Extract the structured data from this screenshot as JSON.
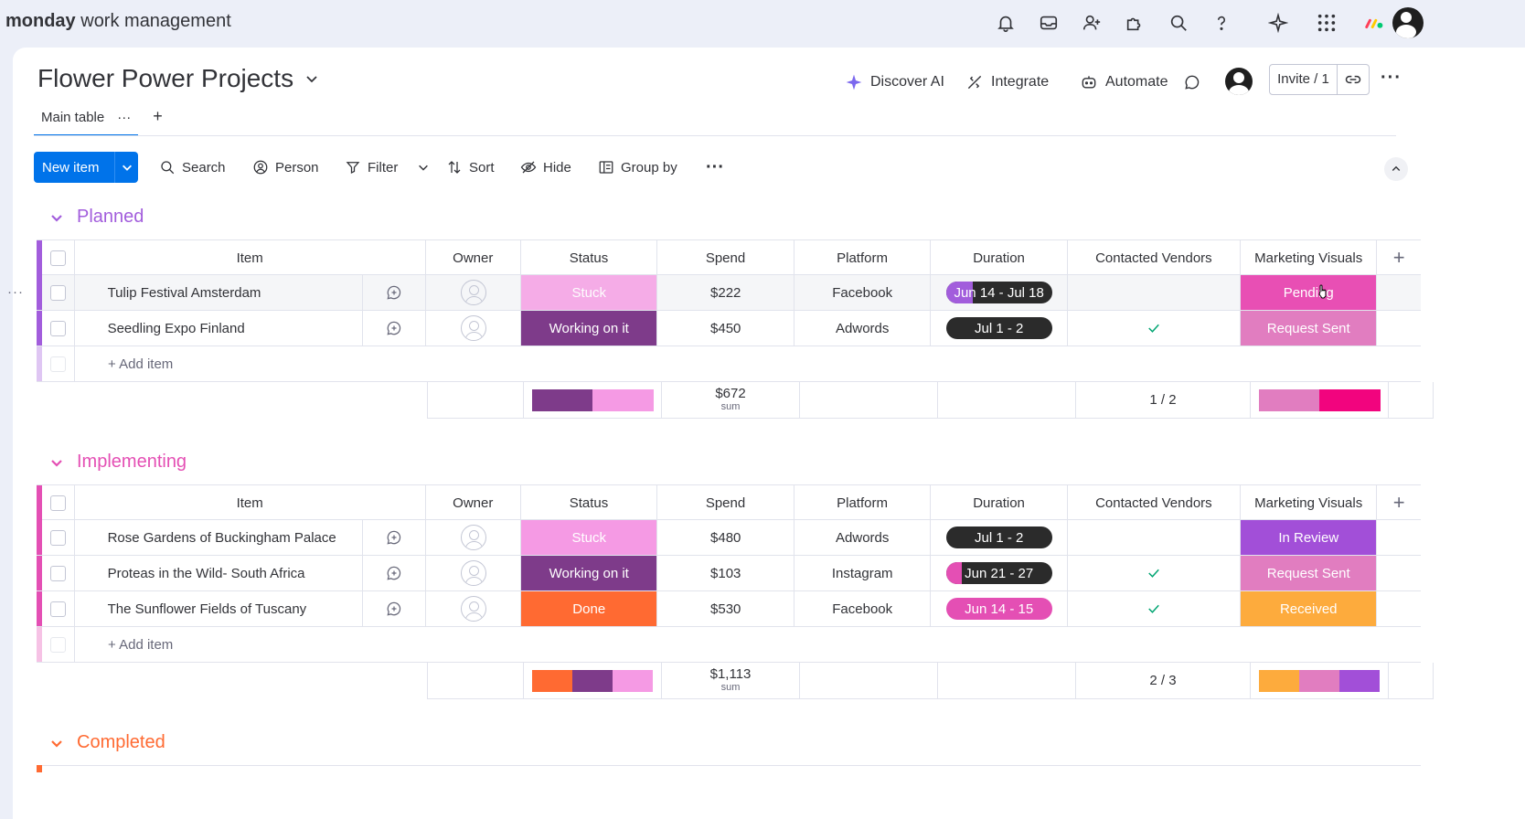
{
  "app": {
    "brand_bold": "monday",
    "brand_rest": " work management"
  },
  "board": {
    "title": "Flower Power Projects"
  },
  "header_actions": {
    "discover_ai": "Discover AI",
    "integrate": "Integrate",
    "automate": "Automate",
    "invite": "Invite / 1"
  },
  "tabs": {
    "main": "Main table",
    "more": "···",
    "add": "+"
  },
  "toolbar": {
    "new_item": "New item",
    "search": "Search",
    "person": "Person",
    "filter": "Filter",
    "sort": "Sort",
    "hide": "Hide",
    "group_by": "Group by",
    "more": "···"
  },
  "columns": {
    "item": "Item",
    "owner": "Owner",
    "status": "Status",
    "spend": "Spend",
    "platform": "Platform",
    "duration": "Duration",
    "vendors": "Contacted Vendors",
    "visuals": "Marketing Visuals"
  },
  "add_item": "+ Add item",
  "sum_label": "sum",
  "colors": {
    "planned": "#a25ddc",
    "implementing": "#e44fb4",
    "completed": "#ff6a32",
    "stuck": "#f59ae4",
    "working": "#7e3b8a",
    "done": "#ff6a32",
    "pending": "#e84fb4",
    "request_sent": "#e17dc0",
    "in_review": "#a24fd8",
    "received": "#fdab3d"
  },
  "groups": [
    {
      "title": "Planned",
      "rows": [
        {
          "item": "Tulip Festival Amsterdam",
          "status": "Stuck",
          "spend": "$222",
          "platform": "Facebook",
          "duration": "Jun 14 - Jul 18",
          "duration_progress": 0.25,
          "vendors": "",
          "visuals": "Pending"
        },
        {
          "item": "Seedling Expo Finland",
          "status": "Working on it",
          "spend": "$450",
          "platform": "Adwords",
          "duration": "Jul 1 - 2",
          "duration_progress": 0,
          "vendors": "check",
          "visuals": "Request Sent"
        }
      ],
      "sum": {
        "spend": "$672",
        "vendors": "1 / 2"
      }
    },
    {
      "title": "Implementing",
      "rows": [
        {
          "item": "Rose Gardens of Buckingham Palace",
          "status": "Stuck",
          "spend": "$480",
          "platform": "Adwords",
          "duration": "Jul 1 - 2",
          "duration_progress": 0,
          "vendors": "",
          "visuals": "In Review"
        },
        {
          "item": "Proteas in the Wild- South Africa",
          "status": "Working on it",
          "spend": "$103",
          "platform": "Instagram",
          "duration": "Jun 21 - 27",
          "duration_progress": 0.15,
          "vendors": "check",
          "visuals": "Request Sent"
        },
        {
          "item": "The Sunflower Fields of Tuscany",
          "status": "Done",
          "spend": "$530",
          "platform": "Facebook",
          "duration": "Jun 14 - 15",
          "duration_progress": 1,
          "vendors": "check",
          "visuals": "Received"
        }
      ],
      "sum": {
        "spend": "$1,113",
        "vendors": "2 / 3"
      }
    },
    {
      "title": "Completed"
    }
  ]
}
